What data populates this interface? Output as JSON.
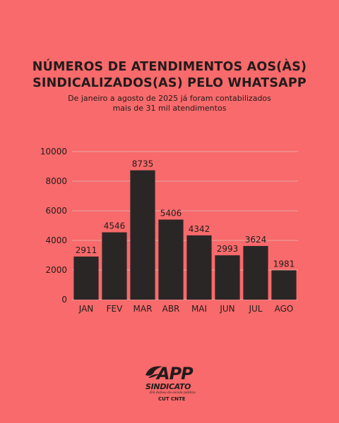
{
  "title": {
    "line1": "NÚMEROS DE ATENDIMENTOS AOS(ÀS)",
    "line2": "SINDICALIZADOS(AS) PELO WHATSAPP"
  },
  "subtitle": {
    "line1": "De janeiro a agosto de 2025 já foram contabilizados",
    "line2": "mais de 31 mil atendimentos"
  },
  "colors": {
    "background": "#f86a6b",
    "bar": "#2b2626",
    "grid": "#e8a4a4",
    "text": "#231b1b"
  },
  "chart_data": {
    "type": "bar",
    "title": "NÚMEROS DE ATENDIMENTOS AOS(ÀS) SINDICALIZADOS(AS) PELO WHATSAPP",
    "categories": [
      "JAN",
      "FEV",
      "MAR",
      "ABR",
      "MAI",
      "JUN",
      "JUL",
      "AGO"
    ],
    "values": [
      2911,
      4546,
      8735,
      5406,
      4342,
      2993,
      3624,
      1981
    ],
    "xlabel": "",
    "ylabel": "",
    "ylim": [
      0,
      10000
    ],
    "yticks": [
      0,
      2000,
      4000,
      6000,
      8000,
      10000
    ],
    "grid": true,
    "data_labels": true,
    "legend": "none"
  },
  "logo": {
    "name": "APP",
    "sub": "SINDICATO",
    "tagline": "Em defesa da escola pública",
    "affiliation": "CUT CNTE",
    "icon": "bird-icon"
  }
}
